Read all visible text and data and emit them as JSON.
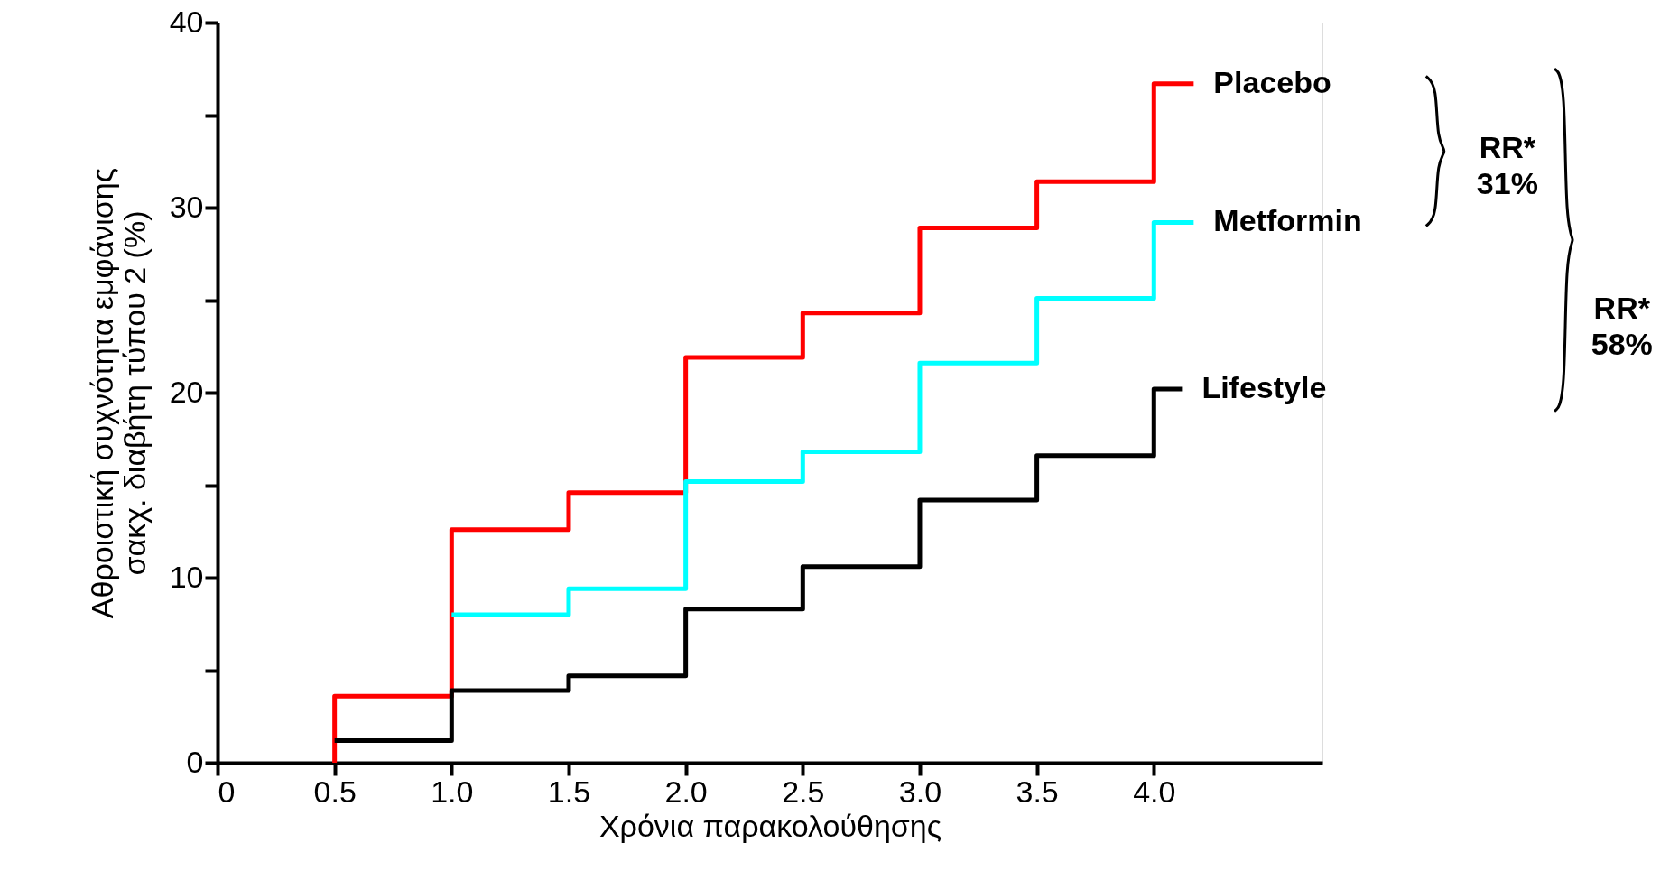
{
  "chart_data": {
    "type": "step",
    "xlabel": "Χρόνια παρακολούθησης",
    "ylabel": "Αθροιστική συχνότητα εμφάνισης\nσακχ. διαβήτη τύπου 2 (%)",
    "xlim": [
      0,
      4.72
    ],
    "xticks": [
      0,
      {
        "value": 0.5,
        "label": "0.5"
      },
      {
        "value": 1,
        "label": "1.0"
      },
      {
        "value": 1.5,
        "label": "1.5"
      },
      {
        "value": 2,
        "label": "2.0"
      },
      {
        "value": 2.5,
        "label": "2.5"
      },
      {
        "value": 3,
        "label": "3.0"
      },
      {
        "value": 3.5,
        "label": "3.5"
      },
      {
        "value": 4,
        "label": "4.0"
      }
    ],
    "ylim": [
      0,
      40
    ],
    "yticks": [
      0,
      {
        "value": 5,
        "label": null
      },
      10,
      {
        "value": 15,
        "label": null
      },
      20,
      {
        "value": 25,
        "label": null
      },
      30,
      {
        "value": 35,
        "label": null
      },
      40
    ],
    "grid": false,
    "legend": false,
    "marker": "none",
    "line_style": "solid",
    "series": [
      {
        "name": "Placebo",
        "color": "#ff0000",
        "x": [
          0.5,
          0.5,
          1.0,
          1.5,
          2.0,
          2.5,
          3.0,
          3.5,
          4.0,
          4.17
        ],
        "values": [
          0,
          3.6,
          12.6,
          14.6,
          21.9,
          24.3,
          28.9,
          31.4,
          36.7,
          36.7
        ]
      },
      {
        "name": "Metformin",
        "color": "#00ffff",
        "x": [
          1.0,
          1.5,
          2.0,
          2.5,
          3.0,
          3.5,
          4.0,
          4.17
        ],
        "values": [
          8.0,
          9.4,
          15.2,
          16.8,
          21.6,
          25.1,
          29.2,
          29.2
        ]
      },
      {
        "name": "Lifestyle",
        "color": "#000000",
        "x": [
          0.5,
          1.0,
          1.5,
          2.0,
          2.5,
          3.0,
          3.5,
          4.0,
          4.12
        ],
        "values": [
          1.2,
          3.9,
          4.7,
          8.3,
          10.6,
          14.2,
          16.6,
          20.2,
          20.2
        ]
      }
    ],
    "annotations": [
      "RR*\n31%",
      "RR*\n58%"
    ]
  }
}
